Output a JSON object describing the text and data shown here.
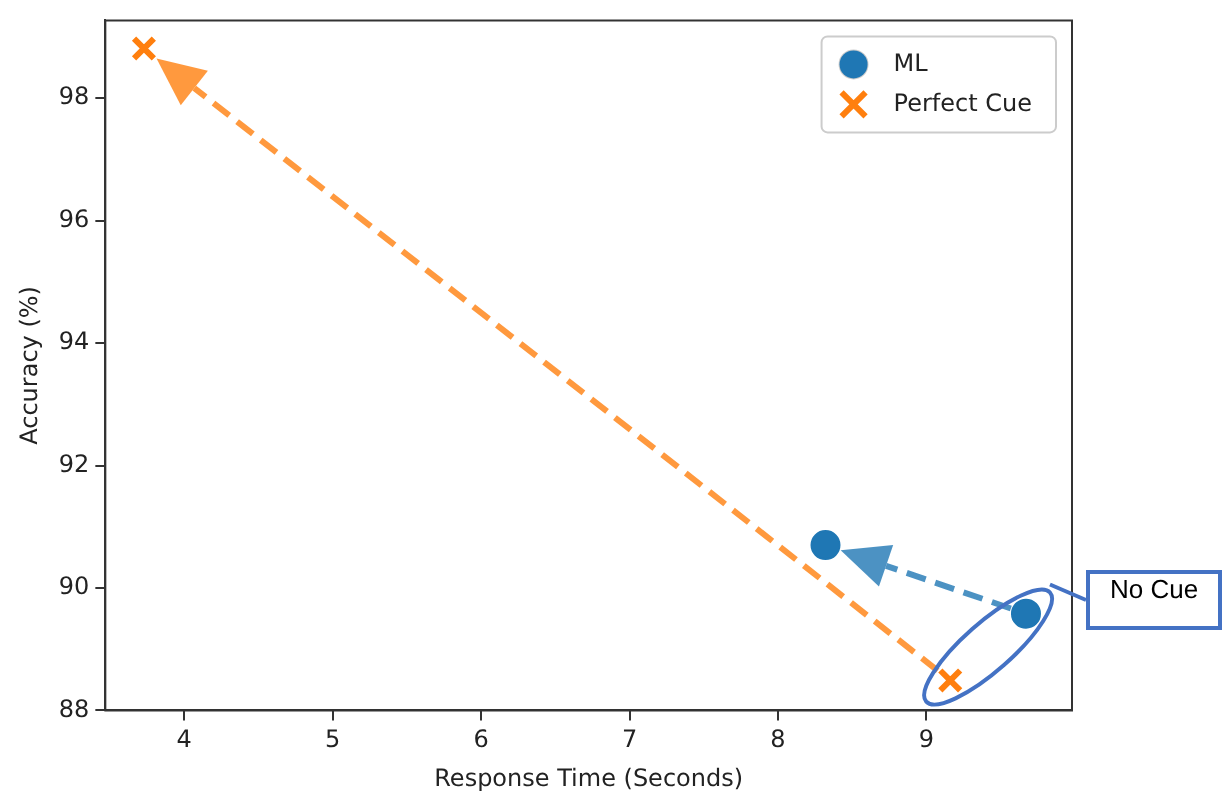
{
  "chart_data": {
    "type": "scatter",
    "xlabel": "Response Time (Seconds)",
    "ylabel": "Accuracy (%)",
    "xlim": [
      3.47,
      9.98
    ],
    "xticks": [
      4,
      5,
      6,
      7,
      8,
      9
    ],
    "ylim": [
      88,
      99.27
    ],
    "yticks": [
      88,
      90,
      92,
      94,
      96,
      98
    ],
    "grid": false,
    "legend": "top right",
    "line_style": "dashed",
    "series": [
      {
        "name": "ML",
        "color": "#1f77b4",
        "marker": "circle",
        "x": [
          9.67,
          8.32
        ],
        "values": [
          89.58,
          90.7
        ]
      },
      {
        "name": "Perfect Cue",
        "color": "#ff7f0e",
        "marker": "cross",
        "x": [
          9.16,
          3.73
        ],
        "values": [
          88.49,
          98.81
        ]
      }
    ],
    "annotations": [
      "No Cue"
    ]
  }
}
